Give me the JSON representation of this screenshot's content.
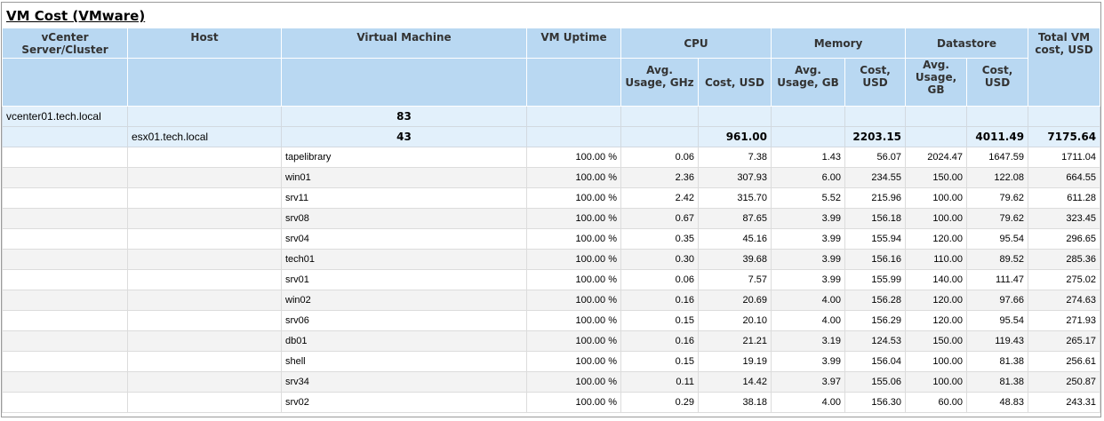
{
  "report": {
    "title": "VM Cost (VMware)"
  },
  "headers": {
    "vcenter": "vCenter Server/Cluster",
    "host": "Host",
    "vm": "Virtual Machine",
    "uptime": "VM Uptime",
    "cpu": "CPU",
    "memory": "Memory",
    "datastore": "Datastore",
    "total": "Total VM cost, USD",
    "cpu_usage": "Avg. Usage, GHz",
    "cpu_cost": "Cost, USD",
    "mem_usage": "Avg. Usage, GB",
    "mem_cost": "Cost, USD",
    "ds_usage": "Avg. Usage, GB",
    "ds_cost": "Cost, USD"
  },
  "vcenter_row": {
    "name": "vcenter01.tech.local",
    "vm_count": "83"
  },
  "host_row": {
    "name": "esx01.tech.local",
    "vm_count": "43",
    "cpu_cost": "961.00",
    "mem_cost": "2203.15",
    "ds_cost": "4011.49",
    "total": "7175.64"
  },
  "rows": [
    {
      "vm": "tapelibrary",
      "uptime": "100.00 %",
      "cpu_usage": "0.06",
      "cpu_cost": "7.38",
      "mem_usage": "1.43",
      "mem_cost": "56.07",
      "ds_usage": "2024.47",
      "ds_cost": "1647.59",
      "total": "1711.04"
    },
    {
      "vm": "win01",
      "uptime": "100.00 %",
      "cpu_usage": "2.36",
      "cpu_cost": "307.93",
      "mem_usage": "6.00",
      "mem_cost": "234.55",
      "ds_usage": "150.00",
      "ds_cost": "122.08",
      "total": "664.55"
    },
    {
      "vm": "srv11",
      "uptime": "100.00 %",
      "cpu_usage": "2.42",
      "cpu_cost": "315.70",
      "mem_usage": "5.52",
      "mem_cost": "215.96",
      "ds_usage": "100.00",
      "ds_cost": "79.62",
      "total": "611.28"
    },
    {
      "vm": "srv08",
      "uptime": "100.00 %",
      "cpu_usage": "0.67",
      "cpu_cost": "87.65",
      "mem_usage": "3.99",
      "mem_cost": "156.18",
      "ds_usage": "100.00",
      "ds_cost": "79.62",
      "total": "323.45"
    },
    {
      "vm": "srv04",
      "uptime": "100.00 %",
      "cpu_usage": "0.35",
      "cpu_cost": "45.16",
      "mem_usage": "3.99",
      "mem_cost": "155.94",
      "ds_usage": "120.00",
      "ds_cost": "95.54",
      "total": "296.65"
    },
    {
      "vm": "tech01",
      "uptime": "100.00 %",
      "cpu_usage": "0.30",
      "cpu_cost": "39.68",
      "mem_usage": "3.99",
      "mem_cost": "156.16",
      "ds_usage": "110.00",
      "ds_cost": "89.52",
      "total": "285.36"
    },
    {
      "vm": "srv01",
      "uptime": "100.00 %",
      "cpu_usage": "0.06",
      "cpu_cost": "7.57",
      "mem_usage": "3.99",
      "mem_cost": "155.99",
      "ds_usage": "140.00",
      "ds_cost": "111.47",
      "total": "275.02"
    },
    {
      "vm": "win02",
      "uptime": "100.00 %",
      "cpu_usage": "0.16",
      "cpu_cost": "20.69",
      "mem_usage": "4.00",
      "mem_cost": "156.28",
      "ds_usage": "120.00",
      "ds_cost": "97.66",
      "total": "274.63"
    },
    {
      "vm": "srv06",
      "uptime": "100.00 %",
      "cpu_usage": "0.15",
      "cpu_cost": "20.10",
      "mem_usage": "4.00",
      "mem_cost": "156.29",
      "ds_usage": "120.00",
      "ds_cost": "95.54",
      "total": "271.93"
    },
    {
      "vm": "db01",
      "uptime": "100.00 %",
      "cpu_usage": "0.16",
      "cpu_cost": "21.21",
      "mem_usage": "3.19",
      "mem_cost": "124.53",
      "ds_usage": "150.00",
      "ds_cost": "119.43",
      "total": "265.17"
    },
    {
      "vm": "shell",
      "uptime": "100.00 %",
      "cpu_usage": "0.15",
      "cpu_cost": "19.19",
      "mem_usage": "3.99",
      "mem_cost": "156.04",
      "ds_usage": "100.00",
      "ds_cost": "81.38",
      "total": "256.61"
    },
    {
      "vm": "srv34",
      "uptime": "100.00 %",
      "cpu_usage": "0.11",
      "cpu_cost": "14.42",
      "mem_usage": "3.97",
      "mem_cost": "155.06",
      "ds_usage": "100.00",
      "ds_cost": "81.38",
      "total": "250.87"
    },
    {
      "vm": "srv02",
      "uptime": "100.00 %",
      "cpu_usage": "0.29",
      "cpu_cost": "38.18",
      "mem_usage": "4.00",
      "mem_cost": "156.30",
      "ds_usage": "60.00",
      "ds_cost": "48.83",
      "total": "243.31"
    }
  ]
}
